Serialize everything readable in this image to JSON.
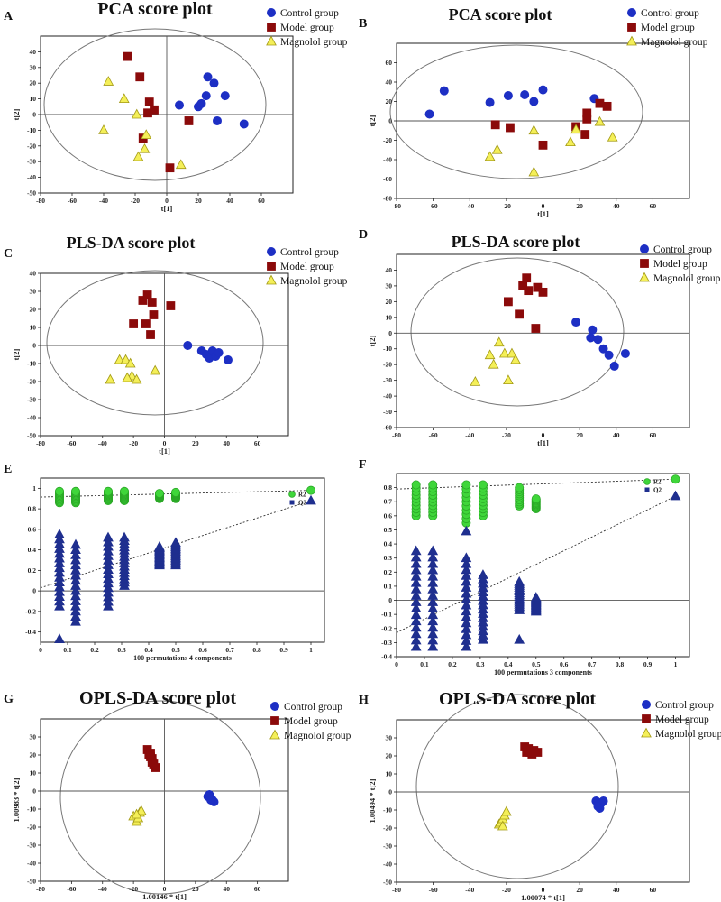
{
  "colors": {
    "control": "#1d2fc4",
    "model": "#8b0a0a",
    "magnolol": "#f4ef58",
    "magnolol_edge": "#a39a16",
    "r2": "#3fd63a",
    "q2": "#1f2f8f"
  },
  "chart_data": [
    {
      "panel": "A",
      "type": "scatter",
      "title": "PCA score plot",
      "xlabel": "t[1]",
      "ylabel": "t[2]",
      "xlim": [
        -80,
        80
      ],
      "ylim": [
        -50,
        50
      ],
      "xticks": [
        "-80",
        "-60",
        "-40",
        "-20",
        "0",
        "20",
        "40",
        "60"
      ],
      "yticks": [
        "-50",
        "-40",
        "-30",
        "-20",
        "-10",
        "0",
        "10",
        "20",
        "30",
        "40"
      ],
      "legend": [
        "Control group",
        "Model group",
        "Magnolol group"
      ],
      "series": [
        {
          "name": "Control group",
          "marker": "circle",
          "points": [
            [
              8,
              6
            ],
            [
              20,
              5
            ],
            [
              22,
              7
            ],
            [
              25,
              12
            ],
            [
              26,
              24
            ],
            [
              30,
              20
            ],
            [
              32,
              -4
            ],
            [
              37,
              12
            ],
            [
              49,
              -6
            ]
          ]
        },
        {
          "name": "Model group",
          "marker": "square",
          "points": [
            [
              -25,
              37
            ],
            [
              -17,
              24
            ],
            [
              -11,
              8
            ],
            [
              -8,
              3
            ],
            [
              -12,
              1
            ],
            [
              -15,
              -15
            ],
            [
              14,
              -4
            ],
            [
              2,
              -34
            ]
          ]
        },
        {
          "name": "Magnolol group",
          "marker": "triangle",
          "points": [
            [
              -37,
              21
            ],
            [
              -27,
              10
            ],
            [
              -40,
              -10
            ],
            [
              -19,
              0
            ],
            [
              -13,
              -13
            ],
            [
              -14,
              -22
            ],
            [
              -18,
              -27
            ],
            [
              9,
              -32
            ]
          ]
        }
      ]
    },
    {
      "panel": "B",
      "type": "scatter",
      "title": "PCA score plot",
      "xlabel": "t[1]",
      "ylabel": "t[2]",
      "xlim": [
        -80,
        80
      ],
      "ylim": [
        -80,
        80
      ],
      "xticks": [
        "-80",
        "-60",
        "-40",
        "-20",
        "0",
        "20",
        "40",
        "60"
      ],
      "yticks": [
        "-80",
        "-60",
        "-40",
        "-20",
        "0",
        "20",
        "40",
        "60"
      ],
      "legend": [
        "Control group",
        "Model group",
        "Magnolol group"
      ],
      "series": [
        {
          "name": "Control group",
          "marker": "circle",
          "points": [
            [
              -62,
              7
            ],
            [
              -54,
              31
            ],
            [
              -29,
              19
            ],
            [
              -19,
              26
            ],
            [
              -10,
              27
            ],
            [
              -5,
              20
            ],
            [
              0,
              32
            ],
            [
              28,
              23
            ]
          ]
        },
        {
          "name": "Model group",
          "marker": "square",
          "points": [
            [
              -26,
              -4
            ],
            [
              -18,
              -7
            ],
            [
              0,
              -25
            ],
            [
              18,
              -6
            ],
            [
              23,
              -14
            ],
            [
              24,
              8
            ],
            [
              24,
              2
            ],
            [
              31,
              18
            ],
            [
              35,
              15
            ]
          ]
        },
        {
          "name": "Magnolol group",
          "marker": "triangle",
          "points": [
            [
              -29,
              -37
            ],
            [
              -25,
              -30
            ],
            [
              -5,
              -10
            ],
            [
              -5,
              -53
            ],
            [
              15,
              -22
            ],
            [
              18,
              -9
            ],
            [
              31,
              -1
            ],
            [
              38,
              -17
            ]
          ]
        }
      ]
    },
    {
      "panel": "C",
      "type": "scatter",
      "title": "PLS-DA score plot",
      "xlabel": "t[1]",
      "ylabel": "t[2]",
      "xlim": [
        -80,
        80
      ],
      "ylim": [
        -50,
        40
      ],
      "xticks": [
        "-80",
        "-60",
        "-40",
        "-20",
        "0",
        "20",
        "40",
        "60"
      ],
      "yticks": [
        "-50",
        "-40",
        "-30",
        "-20",
        "-10",
        "0",
        "10",
        "20",
        "30",
        "40"
      ],
      "legend": [
        "Control group",
        "Model group",
        "Magnolol group"
      ],
      "series": [
        {
          "name": "Control group",
          "marker": "circle",
          "points": [
            [
              15,
              0
            ],
            [
              24,
              -3
            ],
            [
              27,
              -5
            ],
            [
              29,
              -7
            ],
            [
              31,
              -3
            ],
            [
              33,
              -6
            ],
            [
              35,
              -4
            ],
            [
              41,
              -8
            ]
          ]
        },
        {
          "name": "Model group",
          "marker": "square",
          "points": [
            [
              -14,
              25
            ],
            [
              -11,
              28
            ],
            [
              -20,
              12
            ],
            [
              -12,
              12
            ],
            [
              -8,
              24
            ],
            [
              -7,
              17
            ],
            [
              -9,
              6
            ],
            [
              4,
              22
            ]
          ]
        },
        {
          "name": "Magnolol group",
          "marker": "triangle",
          "points": [
            [
              -35,
              -19
            ],
            [
              -29,
              -8
            ],
            [
              -25,
              -8
            ],
            [
              -22,
              -10
            ],
            [
              -21,
              -17
            ],
            [
              -24,
              -18
            ],
            [
              -18,
              -19
            ],
            [
              -6,
              -14
            ]
          ]
        }
      ]
    },
    {
      "panel": "D",
      "type": "scatter",
      "title": "PLS-DA score plot",
      "xlabel": "t[1]",
      "ylabel": "t[2]",
      "xlim": [
        -80,
        80
      ],
      "ylim": [
        -60,
        50
      ],
      "xticks": [
        "-80",
        "-60",
        "-40",
        "-20",
        "0",
        "20",
        "40",
        "60"
      ],
      "yticks": [
        "-60",
        "-50",
        "-40",
        "-30",
        "-20",
        "-10",
        "0",
        "10",
        "20",
        "30",
        "40"
      ],
      "legend": [
        "Control group",
        "Model group",
        "Magnolol group"
      ],
      "series": [
        {
          "name": "Control group",
          "marker": "circle",
          "points": [
            [
              18,
              7
            ],
            [
              26,
              -3
            ],
            [
              27,
              2
            ],
            [
              30,
              -4
            ],
            [
              33,
              -10
            ],
            [
              36,
              -14
            ],
            [
              39,
              -21
            ],
            [
              45,
              -13
            ]
          ]
        },
        {
          "name": "Model group",
          "marker": "square",
          "points": [
            [
              -19,
              20
            ],
            [
              -13,
              12
            ],
            [
              -11,
              30
            ],
            [
              -9,
              35
            ],
            [
              -8,
              27
            ],
            [
              -3,
              29
            ],
            [
              0,
              26
            ],
            [
              -4,
              3
            ]
          ]
        },
        {
          "name": "Magnolol group",
          "marker": "triangle",
          "points": [
            [
              -37,
              -31
            ],
            [
              -29,
              -14
            ],
            [
              -27,
              -20
            ],
            [
              -24,
              -6
            ],
            [
              -21,
              -13
            ],
            [
              -19,
              -30
            ],
            [
              -17,
              -13
            ],
            [
              -15,
              -17
            ]
          ]
        }
      ]
    },
    {
      "panel": "E",
      "type": "scatter",
      "title": "",
      "xlabel": "100 permutations 4 components",
      "ylabel": "",
      "xlim": [
        0,
        1.05
      ],
      "ylim": [
        -0.5,
        1.1
      ],
      "xticks": [
        "0",
        "0.1",
        "0.2",
        "0.3",
        "0.4",
        "0.5",
        "0.6",
        "0.7",
        "0.8",
        "0.9",
        "1"
      ],
      "yticks": [
        "-0.4",
        "-0.2",
        "0",
        "0.2",
        "0.4",
        "0.6",
        "0.8",
        "1"
      ],
      "legend": [
        "R2",
        "Q2"
      ],
      "r2_line": {
        "intercept": 0.915,
        "end": [
          1.0,
          0.98
        ]
      },
      "q2_line": {
        "intercept": 0.03,
        "end": [
          1.0,
          0.88
        ]
      },
      "series": [
        {
          "name": "R2",
          "marker": "circle",
          "x_groups": [
            0.07,
            0.13,
            0.25,
            0.31,
            0.44,
            0.5
          ],
          "y_min": [
            0.86,
            0.86,
            0.88,
            0.88,
            0.9,
            0.9
          ],
          "y_max": [
            0.97,
            0.97,
            0.97,
            0.97,
            0.95,
            0.96
          ],
          "final": [
            1.0,
            0.98
          ]
        },
        {
          "name": "Q2",
          "marker": "square",
          "x_groups": [
            0.07,
            0.13,
            0.25,
            0.31,
            0.44,
            0.5
          ],
          "y_min": [
            -0.15,
            -0.3,
            -0.15,
            0.05,
            0.25,
            0.25
          ],
          "y_max": [
            0.55,
            0.45,
            0.52,
            0.52,
            0.43,
            0.47
          ],
          "outliers": [
            [
              0.07,
              -0.47
            ]
          ],
          "final": [
            1.0,
            0.88
          ]
        }
      ]
    },
    {
      "panel": "F",
      "type": "scatter",
      "title": "",
      "xlabel": "100 permutations 3 components",
      "ylabel": "",
      "xlim": [
        0,
        1.05
      ],
      "ylim": [
        -0.4,
        0.9
      ],
      "xticks": [
        "0",
        "0.1",
        "0.2",
        "0.3",
        "0.4",
        "0.5",
        "0.6",
        "0.7",
        "0.8",
        "0.9",
        "1"
      ],
      "yticks": [
        "-0.4",
        "-0.3",
        "-0.2",
        "-0.1",
        "0",
        "0.1",
        "0.2",
        "0.3",
        "0.4",
        "0.5",
        "0.6",
        "0.7",
        "0.8"
      ],
      "legend": [
        "R2",
        "Q2"
      ],
      "r2_line": {
        "intercept": 0.79,
        "end": [
          1.0,
          0.86
        ]
      },
      "q2_line": {
        "intercept": -0.23,
        "end": [
          1.0,
          0.74
        ]
      },
      "series": [
        {
          "name": "R2",
          "marker": "circle",
          "x_groups": [
            0.07,
            0.13,
            0.25,
            0.31,
            0.44,
            0.5
          ],
          "y_min": [
            0.6,
            0.6,
            0.55,
            0.6,
            0.67,
            0.65
          ],
          "y_max": [
            0.82,
            0.82,
            0.82,
            0.82,
            0.8,
            0.72
          ],
          "final": [
            1.0,
            0.86
          ]
        },
        {
          "name": "Q2",
          "marker": "square",
          "x_groups": [
            0.07,
            0.13,
            0.25,
            0.31,
            0.44,
            0.5
          ],
          "y_min": [
            -0.33,
            -0.33,
            -0.33,
            -0.28,
            -0.07,
            -0.08
          ],
          "y_max": [
            0.35,
            0.35,
            0.3,
            0.18,
            0.13,
            0.02
          ],
          "outliers": [
            [
              0.25,
              0.49
            ],
            [
              0.44,
              -0.28
            ]
          ],
          "final": [
            1.0,
            0.74
          ]
        }
      ]
    },
    {
      "panel": "G",
      "type": "scatter",
      "title": "OPLS-DA score plot",
      "xlabel": "1.00146 * t[1]",
      "ylabel": "1.00983 * t[2]",
      "xlim": [
        -80,
        80
      ],
      "ylim": [
        -50,
        40
      ],
      "xticks": [
        "-80",
        "-60",
        "-40",
        "-20",
        "0",
        "20",
        "40",
        "60"
      ],
      "yticks": [
        "-50",
        "-40",
        "-30",
        "-20",
        "-10",
        "0",
        "10",
        "20",
        "30"
      ],
      "legend": [
        "Control group",
        "Model group",
        "Magnolol group"
      ],
      "series": [
        {
          "name": "Control group",
          "marker": "circle",
          "points": [
            [
              28,
              -3
            ],
            [
              30,
              -4
            ],
            [
              31,
              -5
            ],
            [
              32,
              -6
            ],
            [
              29,
              -2
            ],
            [
              30,
              -5
            ]
          ]
        },
        {
          "name": "Model group",
          "marker": "square",
          "points": [
            [
              -11,
              23
            ],
            [
              -10,
              20
            ],
            [
              -9,
              19
            ],
            [
              -8,
              16
            ],
            [
              -7,
              15
            ],
            [
              -6,
              13
            ],
            [
              -8,
              18
            ],
            [
              -9,
              21
            ]
          ]
        },
        {
          "name": "Magnolol group",
          "marker": "triangle",
          "points": [
            [
              -20,
              -14
            ],
            [
              -18,
              -17
            ],
            [
              -17,
              -15
            ],
            [
              -16,
              -12
            ],
            [
              -15,
              -11
            ],
            [
              -18,
              -13
            ]
          ]
        }
      ]
    },
    {
      "panel": "H",
      "type": "scatter",
      "title": "OPLS-DA score plot",
      "xlabel": "1.00074 * t[1]",
      "ylabel": "1.00494 * t[2]",
      "xlim": [
        -80,
        80
      ],
      "ylim": [
        -50,
        40
      ],
      "xticks": [
        "-80",
        "-60",
        "-40",
        "-20",
        "0",
        "20",
        "40",
        "60"
      ],
      "yticks": [
        "-50",
        "-40",
        "-30",
        "-20",
        "-10",
        "0",
        "10",
        "20",
        "30"
      ],
      "legend": [
        "Control group",
        "Model group",
        "Magnolol group"
      ],
      "series": [
        {
          "name": "Control group",
          "marker": "circle",
          "points": [
            [
              29,
              -5
            ],
            [
              30,
              -7
            ],
            [
              31,
              -9
            ],
            [
              32,
              -6
            ],
            [
              30,
              -8
            ],
            [
              33,
              -5
            ]
          ]
        },
        {
          "name": "Model group",
          "marker": "square",
          "points": [
            [
              -10,
              25
            ],
            [
              -9,
              22
            ],
            [
              -7,
              22
            ],
            [
              -5,
              23
            ],
            [
              -3,
              22
            ],
            [
              -8,
              24
            ],
            [
              -6,
              21
            ]
          ]
        },
        {
          "name": "Magnolol group",
          "marker": "triangle",
          "points": [
            [
              -24,
              -18
            ],
            [
              -23,
              -17
            ],
            [
              -22,
              -15
            ],
            [
              -21,
              -13
            ],
            [
              -20,
              -11
            ],
            [
              -22,
              -19
            ]
          ]
        }
      ]
    }
  ]
}
